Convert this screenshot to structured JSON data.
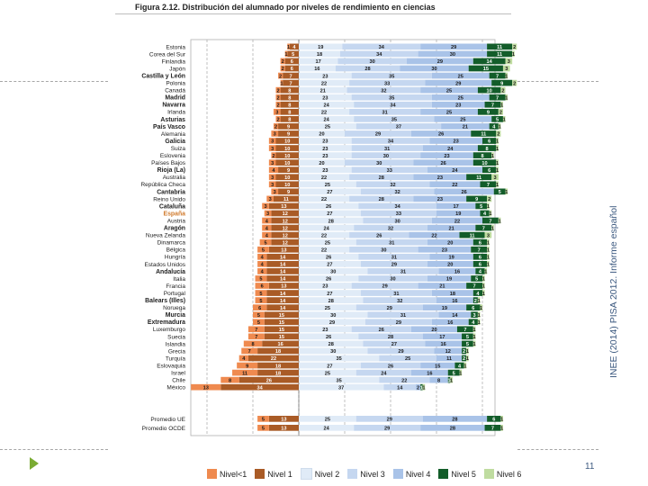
{
  "header": {
    "figure_title": "Figura 2.12. Distribución del alumnado por niveles de rendimiento en ciencias"
  },
  "side_caption": "INEE (2014) PISA 2012. Informe español",
  "page_number": "11",
  "colors": {
    "nivel_lt1": "#ef8a4f",
    "nivel_1": "#a95b26",
    "nivel_2": "#e0ebf7",
    "nivel_3": "#c5d7f0",
    "nivel_4": "#a9c3e8",
    "nivel_5": "#135d2a",
    "nivel_6": "#bfdca0",
    "spain_label": "#d07b2e"
  },
  "chart_data": {
    "type": "bar",
    "stacked": "diverging",
    "baseline": "Nivel 2",
    "legend": [
      "Nivel<1",
      "Nivel 1",
      "Nivel 2",
      "Nivel 3",
      "Nivel 4",
      "Nivel 5",
      "Nivel 6"
    ],
    "legend_position": "bottom",
    "rows": [
      {
        "name": "Estonia",
        "bold": false,
        "v": [
          1,
          4,
          19,
          34,
          29,
          11,
          2
        ]
      },
      {
        "name": "Corea del Sur",
        "bold": false,
        "v": [
          1,
          5,
          18,
          34,
          30,
          11,
          1
        ]
      },
      {
        "name": "Finlandia",
        "bold": false,
        "v": [
          2,
          6,
          17,
          30,
          29,
          14,
          3
        ]
      },
      {
        "name": "Japón",
        "bold": false,
        "v": [
          2,
          6,
          16,
          28,
          30,
          15,
          3
        ]
      },
      {
        "name": "Castilla y León",
        "bold": true,
        "v": [
          2,
          7,
          23,
          35,
          25,
          7,
          1
        ]
      },
      {
        "name": "Polonia",
        "bold": false,
        "v": [
          1,
          7,
          22,
          33,
          29,
          9,
          2
        ]
      },
      {
        "name": "Canadá",
        "bold": false,
        "v": [
          2,
          8,
          21,
          32,
          25,
          10,
          2
        ]
      },
      {
        "name": "Madrid",
        "bold": true,
        "v": [
          2,
          8,
          23,
          35,
          25,
          7,
          1
        ]
      },
      {
        "name": "Navarra",
        "bold": true,
        "v": [
          2,
          8,
          24,
          34,
          23,
          7,
          1
        ]
      },
      {
        "name": "Irlanda",
        "bold": false,
        "v": [
          3,
          8,
          22,
          31,
          25,
          9,
          2
        ]
      },
      {
        "name": "Asturias",
        "bold": true,
        "v": [
          2,
          8,
          24,
          35,
          25,
          5,
          1
        ]
      },
      {
        "name": "País Vasco",
        "bold": true,
        "v": [
          2,
          9,
          25,
          37,
          21,
          4,
          1
        ]
      },
      {
        "name": "Alemania",
        "bold": false,
        "v": [
          3,
          9,
          20,
          29,
          26,
          11,
          2
        ]
      },
      {
        "name": "Galicia",
        "bold": true,
        "v": [
          3,
          10,
          23,
          34,
          23,
          6,
          1
        ]
      },
      {
        "name": "Suiza",
        "bold": false,
        "v": [
          3,
          10,
          23,
          31,
          24,
          8,
          1
        ]
      },
      {
        "name": "Eslovenia",
        "bold": false,
        "v": [
          2,
          10,
          23,
          30,
          23,
          8,
          1
        ]
      },
      {
        "name": "Países Bajos",
        "bold": false,
        "v": [
          3,
          10,
          20,
          30,
          26,
          10,
          1
        ]
      },
      {
        "name": "Rioja (La)",
        "bold": true,
        "v": [
          4,
          9,
          23,
          33,
          24,
          6,
          1
        ]
      },
      {
        "name": "Australia",
        "bold": false,
        "v": [
          3,
          10,
          22,
          28,
          23,
          11,
          3
        ]
      },
      {
        "name": "República Checa",
        "bold": false,
        "v": [
          3,
          10,
          25,
          32,
          22,
          7,
          1
        ]
      },
      {
        "name": "Cantabria",
        "bold": true,
        "v": [
          3,
          9,
          27,
          32,
          26,
          5,
          1
        ]
      },
      {
        "name": "Reino Unido",
        "bold": false,
        "v": [
          3,
          11,
          22,
          28,
          23,
          9,
          2
        ]
      },
      {
        "name": "Cataluña",
        "bold": true,
        "v": [
          3,
          13,
          26,
          34,
          17,
          5,
          1
        ]
      },
      {
        "name": "España",
        "bold": true,
        "highlight": true,
        "v": [
          3,
          12,
          27,
          33,
          19,
          4,
          1
        ]
      },
      {
        "name": "Austria",
        "bold": false,
        "v": [
          4,
          12,
          28,
          30,
          22,
          7,
          1
        ]
      },
      {
        "name": "Aragón",
        "bold": true,
        "v": [
          4,
          12,
          24,
          32,
          21,
          7,
          1
        ]
      },
      {
        "name": "Nueva Zelanda",
        "bold": false,
        "v": [
          4,
          12,
          22,
          26,
          22,
          11,
          3
        ]
      },
      {
        "name": "Dinamarca",
        "bold": false,
        "v": [
          5,
          12,
          25,
          31,
          20,
          6,
          1
        ]
      },
      {
        "name": "Bélgica",
        "bold": false,
        "v": [
          5,
          13,
          22,
          30,
          23,
          7,
          1
        ]
      },
      {
        "name": "Hungría",
        "bold": false,
        "v": [
          4,
          14,
          26,
          31,
          19,
          6,
          1
        ]
      },
      {
        "name": "Estados Unidos",
        "bold": false,
        "v": [
          4,
          14,
          27,
          29,
          20,
          6,
          1
        ]
      },
      {
        "name": "Andalucía",
        "bold": true,
        "v": [
          4,
          14,
          30,
          31,
          16,
          4,
          1
        ]
      },
      {
        "name": "Italia",
        "bold": false,
        "v": [
          5,
          14,
          26,
          30,
          19,
          5,
          1
        ]
      },
      {
        "name": "Francia",
        "bold": false,
        "v": [
          6,
          13,
          23,
          29,
          21,
          7,
          1
        ]
      },
      {
        "name": "Portugal",
        "bold": false,
        "v": [
          5,
          14,
          27,
          31,
          18,
          4,
          1
        ]
      },
      {
        "name": "Balears (Illes)",
        "bold": true,
        "v": [
          5,
          14,
          28,
          32,
          16,
          2,
          1
        ]
      },
      {
        "name": "Noruega",
        "bold": false,
        "v": [
          6,
          14,
          25,
          29,
          19,
          6,
          1
        ]
      },
      {
        "name": "Murcia",
        "bold": true,
        "v": [
          5,
          15,
          30,
          31,
          14,
          3,
          1
        ]
      },
      {
        "name": "Extremadura",
        "bold": true,
        "v": [
          5,
          15,
          29,
          29,
          16,
          4,
          1
        ]
      },
      {
        "name": "Luxemburgo",
        "bold": false,
        "v": [
          7,
          15,
          23,
          26,
          20,
          7,
          1
        ]
      },
      {
        "name": "Suecia",
        "bold": false,
        "v": [
          7,
          15,
          26,
          28,
          17,
          5,
          1
        ]
      },
      {
        "name": "Islandia",
        "bold": false,
        "v": [
          8,
          16,
          28,
          27,
          16,
          5,
          1
        ]
      },
      {
        "name": "Grecia",
        "bold": false,
        "v": [
          7,
          18,
          30,
          29,
          12,
          2,
          1
        ]
      },
      {
        "name": "Turquía",
        "bold": false,
        "v": [
          4,
          22,
          35,
          25,
          11,
          2,
          1
        ]
      },
      {
        "name": "Eslovaquia",
        "bold": false,
        "v": [
          9,
          18,
          27,
          26,
          15,
          4,
          1
        ]
      },
      {
        "name": "Israel",
        "bold": false,
        "v": [
          11,
          18,
          25,
          24,
          16,
          5,
          1
        ]
      },
      {
        "name": "Chile",
        "bold": false,
        "v": [
          8,
          26,
          35,
          22,
          8,
          1,
          1
        ]
      },
      {
        "name": "México",
        "bold": false,
        "v": [
          13,
          34,
          37,
          14,
          2,
          1,
          1
        ]
      },
      {
        "name": "Promedio UE",
        "bold": false,
        "summary": true,
        "v": [
          5,
          13,
          25,
          29,
          28,
          6,
          1
        ]
      },
      {
        "name": "Promedio OCDE",
        "bold": false,
        "summary": true,
        "v": [
          5,
          13,
          24,
          29,
          28,
          7,
          1
        ]
      }
    ]
  }
}
